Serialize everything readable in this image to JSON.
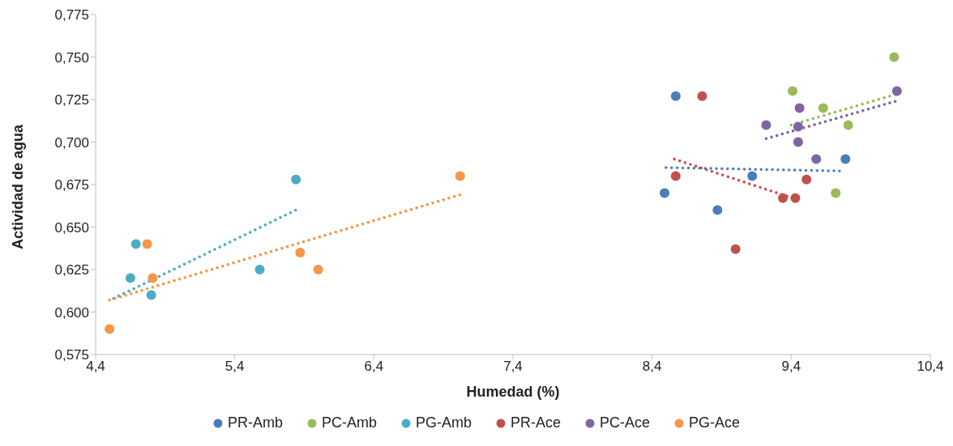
{
  "chart_data": {
    "type": "scatter",
    "xlabel": "Humedad (%)",
    "ylabel": "Actividad de agua",
    "xlim": [
      4.4,
      10.4
    ],
    "xticks": [
      {
        "value": 4.4,
        "label": "4,4"
      },
      {
        "value": 5.4,
        "label": "5,4"
      },
      {
        "value": 6.4,
        "label": "6,4"
      },
      {
        "value": 7.4,
        "label": "7,4"
      },
      {
        "value": 8.4,
        "label": "8,4"
      },
      {
        "value": 9.4,
        "label": "9,4"
      },
      {
        "value": 10.4,
        "label": "10,4"
      }
    ],
    "ylim": [
      0.575,
      0.775
    ],
    "yticks": [
      {
        "value": 0.575,
        "label": "0,575"
      },
      {
        "value": 0.6,
        "label": "0,600"
      },
      {
        "value": 0.625,
        "label": "0,625"
      },
      {
        "value": 0.65,
        "label": "0,650"
      },
      {
        "value": 0.675,
        "label": "0,675"
      },
      {
        "value": 0.7,
        "label": "0,700"
      },
      {
        "value": 0.725,
        "label": "0,725"
      },
      {
        "value": 0.75,
        "label": "0,750"
      },
      {
        "value": 0.775,
        "label": "0,775"
      }
    ],
    "grid": false,
    "legend": "bottom",
    "marker": "circle",
    "series": [
      {
        "name": "PR-Amb",
        "color": "#4a7ebb",
        "x": [
          8.57,
          8.49,
          8.87,
          9.12,
          9.79
        ],
        "values": [
          0.727,
          0.67,
          0.66,
          0.68,
          0.69
        ]
      },
      {
        "name": "PC-Amb",
        "color": "#9bbb59",
        "x": [
          9.41,
          9.63,
          9.81,
          9.72,
          10.14
        ],
        "values": [
          0.73,
          0.72,
          0.71,
          0.67,
          0.75
        ]
      },
      {
        "name": "PG-Amb",
        "color": "#4bacc6",
        "x": [
          4.69,
          4.65,
          4.8,
          5.58,
          5.84
        ],
        "values": [
          0.64,
          0.62,
          0.61,
          0.625,
          0.678
        ]
      },
      {
        "name": "PR-Ace",
        "color": "#c0504d",
        "x": [
          8.76,
          8.57,
          9.0,
          9.34,
          9.43,
          9.51
        ],
        "values": [
          0.727,
          0.68,
          0.637,
          0.667,
          0.667,
          0.678
        ]
      },
      {
        "name": "PC-Ace",
        "color": "#8064a2",
        "x": [
          9.22,
          9.46,
          9.45,
          9.45,
          9.58,
          10.16
        ],
        "values": [
          0.71,
          0.72,
          0.709,
          0.7,
          0.69,
          0.73
        ]
      },
      {
        "name": "PG-Ace",
        "color": "#f79646",
        "x": [
          4.5,
          4.77,
          4.81,
          5.87,
          6.0,
          7.02
        ],
        "values": [
          0.59,
          0.64,
          0.62,
          0.635,
          0.625,
          0.68
        ]
      },
      {
        "type": "line",
        "color": "#4a7ebb",
        "x": [
          8.5,
          9.75
        ],
        "values": [
          0.685,
          0.683
        ],
        "line_style": "dotted",
        "marker": "none"
      },
      {
        "type": "line",
        "color": "#9bbb59",
        "x": [
          9.4,
          10.15
        ],
        "values": [
          0.71,
          0.728
        ],
        "line_style": "dotted",
        "marker": "none"
      },
      {
        "type": "line",
        "color": "#4bacc6",
        "x": [
          4.53,
          5.84
        ],
        "values": [
          0.608,
          0.66
        ],
        "line_style": "dotted",
        "marker": "none"
      },
      {
        "type": "line",
        "color": "#c0504d",
        "x": [
          8.56,
          9.45
        ],
        "values": [
          0.69,
          0.666
        ],
        "line_style": "dotted",
        "marker": "none"
      },
      {
        "type": "line",
        "color": "#8064a2",
        "x": [
          9.22,
          10.15
        ],
        "values": [
          0.702,
          0.724
        ],
        "line_style": "dotted",
        "marker": "none"
      },
      {
        "type": "line",
        "color": "#f79646",
        "x": [
          4.5,
          7.02
        ],
        "values": [
          0.607,
          0.669
        ],
        "line_style": "dotted",
        "marker": "none"
      }
    ]
  }
}
